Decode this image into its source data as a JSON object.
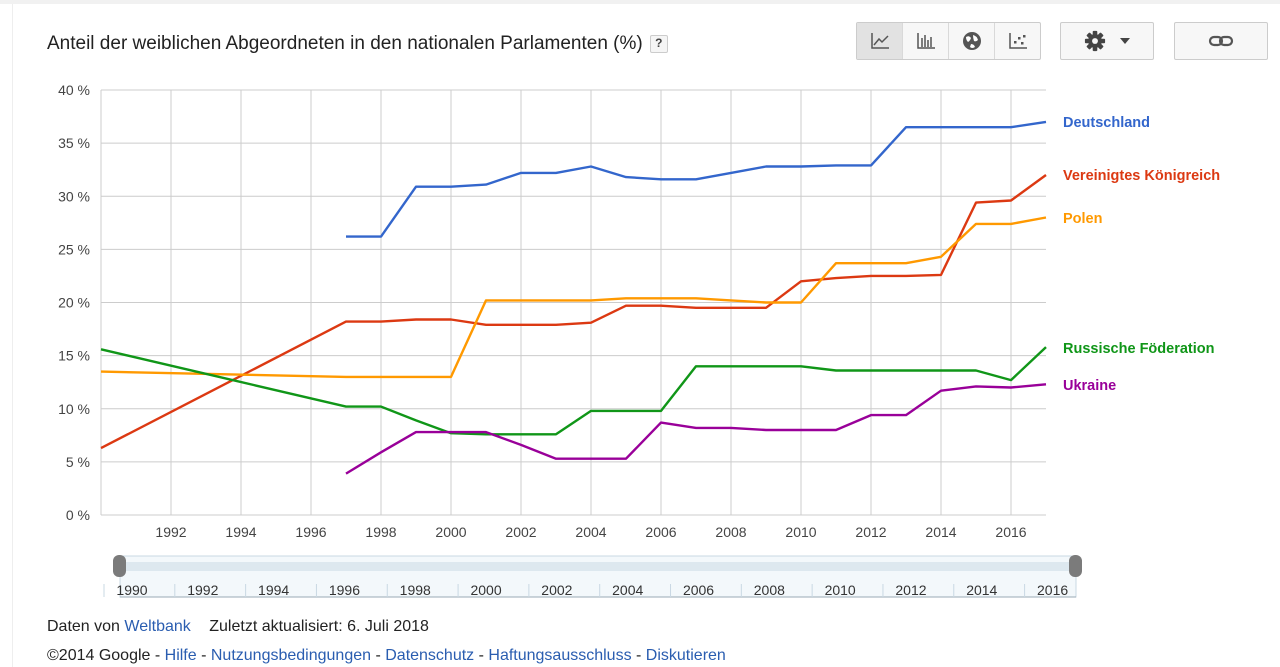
{
  "chart_data": {
    "type": "line",
    "title": "Anteil der weiblichen Abgeordneten in den nationalen Parlamenten (%)",
    "help_label": "?",
    "xlim": [
      1990,
      2017
    ],
    "ylim": [
      0,
      40
    ],
    "yticks": [
      0,
      5,
      10,
      15,
      20,
      25,
      30,
      35,
      40
    ],
    "ytick_labels": [
      "0 %",
      "5 %",
      "10 %",
      "15 %",
      "20 %",
      "25 %",
      "30 %",
      "35 %",
      "40 %"
    ],
    "xticks": [
      1992,
      1994,
      1996,
      1998,
      2000,
      2002,
      2004,
      2006,
      2008,
      2010,
      2012,
      2014,
      2016
    ],
    "xtick_labels": [
      "1992",
      "1994",
      "1996",
      "1998",
      "2000",
      "2002",
      "2004",
      "2006",
      "2008",
      "2010",
      "2012",
      "2014",
      "2016"
    ],
    "grid": true,
    "legend": "right, inline labels",
    "series": [
      {
        "name": "Deutschland",
        "color": "#3366cc",
        "x": [
          1997,
          1998,
          1999,
          2000,
          2001,
          2002,
          2003,
          2004,
          2005,
          2006,
          2007,
          2008,
          2009,
          2010,
          2011,
          2012,
          2013,
          2014,
          2015,
          2016,
          2017
        ],
        "y": [
          26.2,
          26.2,
          30.9,
          30.9,
          31.1,
          32.2,
          32.2,
          32.8,
          31.8,
          31.6,
          31.6,
          32.2,
          32.8,
          32.8,
          32.9,
          32.9,
          36.5,
          36.5,
          36.5,
          36.5,
          37.0
        ]
      },
      {
        "name": "Vereinigtes Königreich",
        "color": "#dc3912",
        "x": [
          1990,
          1997,
          1998,
          1999,
          2000,
          2001,
          2002,
          2003,
          2004,
          2005,
          2006,
          2007,
          2008,
          2009,
          2010,
          2011,
          2012,
          2013,
          2014,
          2015,
          2016,
          2017
        ],
        "y": [
          6.3,
          18.2,
          18.2,
          18.4,
          18.4,
          17.9,
          17.9,
          17.9,
          18.1,
          19.7,
          19.7,
          19.5,
          19.5,
          19.5,
          22.0,
          22.3,
          22.5,
          22.5,
          22.6,
          29.4,
          29.6,
          32.0
        ]
      },
      {
        "name": "Polen",
        "color": "#ff9900",
        "x": [
          1990,
          1997,
          1998,
          1999,
          2000,
          2001,
          2002,
          2003,
          2004,
          2005,
          2006,
          2007,
          2008,
          2009,
          2010,
          2011,
          2012,
          2013,
          2014,
          2015,
          2016,
          2017
        ],
        "y": [
          13.5,
          13.0,
          13.0,
          13.0,
          13.0,
          20.2,
          20.2,
          20.2,
          20.2,
          20.4,
          20.4,
          20.4,
          20.2,
          20.0,
          20.0,
          23.7,
          23.7,
          23.7,
          24.3,
          27.4,
          27.4,
          28.0
        ]
      },
      {
        "name": "Russische Föderation",
        "color": "#109618",
        "x": [
          1990,
          1997,
          1998,
          1999,
          2000,
          2001,
          2002,
          2003,
          2004,
          2005,
          2006,
          2007,
          2008,
          2009,
          2010,
          2011,
          2012,
          2013,
          2014,
          2015,
          2016,
          2017
        ],
        "y": [
          15.6,
          10.2,
          10.2,
          8.9,
          7.7,
          7.6,
          7.6,
          7.6,
          9.8,
          9.8,
          9.8,
          14.0,
          14.0,
          14.0,
          14.0,
          13.6,
          13.6,
          13.6,
          13.6,
          13.6,
          12.7,
          15.8
        ]
      },
      {
        "name": "Ukraine",
        "color": "#990099",
        "x": [
          1997,
          1998,
          1999,
          2000,
          2001,
          2002,
          2003,
          2004,
          2005,
          2006,
          2007,
          2008,
          2009,
          2010,
          2011,
          2012,
          2013,
          2014,
          2015,
          2016,
          2017
        ],
        "y": [
          3.9,
          5.9,
          7.8,
          7.8,
          7.8,
          6.6,
          5.3,
          5.3,
          5.3,
          8.7,
          8.2,
          8.2,
          8.0,
          8.0,
          8.0,
          9.4,
          9.4,
          11.7,
          12.1,
          12.0,
          12.3
        ]
      }
    ],
    "range_selector": {
      "tick_labels": [
        "1990",
        "1992",
        "1994",
        "1996",
        "1998",
        "2000",
        "2002",
        "2004",
        "2006",
        "2008",
        "2010",
        "2012",
        "2014",
        "2016"
      ],
      "selected_range": [
        1990,
        2017
      ]
    }
  },
  "toolbar": {
    "views": [
      "line-chart-icon",
      "bar-chart-icon",
      "globe-icon",
      "scatter-chart-icon"
    ],
    "settings": "gear-icon",
    "link": "link-icon"
  },
  "footer": {
    "source_prefix": "Daten von",
    "source_link": "Weltbank",
    "updated": "Zuletzt aktualisiert: 6. Juli 2018",
    "copyright": "©2014 Google",
    "sep": " - ",
    "links": [
      "Hilfe",
      "Nutzungsbedingungen",
      "Datenschutz",
      "Haftungsausschluss",
      "Diskutieren"
    ]
  },
  "colors": {
    "grid": "#cccccc",
    "axis_text": "#444444",
    "link": "#2a5db0"
  }
}
